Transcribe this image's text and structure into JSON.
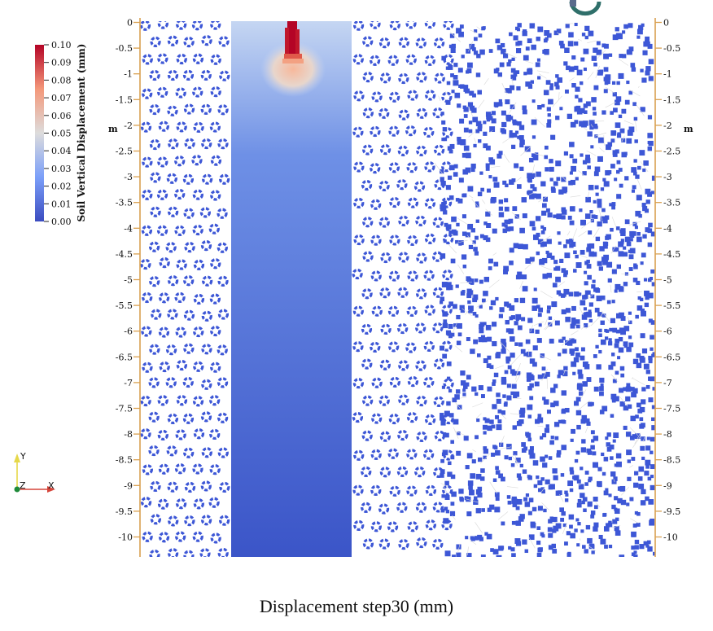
{
  "caption": "Displacement step30 (mm)",
  "colors": {
    "low": "#3b4cc0",
    "mid": "#dddddd",
    "high": "#b40426",
    "ruler": "#d9a050",
    "cell": "#3d57d6"
  },
  "chart_data": {
    "type": "heatmap",
    "title": "Displacement step30 (mm)",
    "colorbar": {
      "title": "Soil Vertical Displacement (mm)",
      "range": [
        0.0,
        0.1
      ],
      "ticks": [
        "0.10",
        "0.09",
        "0.08",
        "0.07",
        "0.06",
        "0.05",
        "0.04",
        "0.03",
        "0.02",
        "0.01",
        "0.00"
      ],
      "colormap": "coolwarm",
      "placement": "top-left"
    },
    "y_axis": {
      "unit": "m",
      "range": [
        0,
        -10.3
      ],
      "ticks": [
        "0",
        "-0.5",
        "-1",
        "-1.5",
        "-2",
        "-2.5",
        "-3",
        "-3.5",
        "-4",
        "-4.5",
        "-5",
        "-5.5",
        "-6",
        "-6.5",
        "-7",
        "-7.5",
        "-8",
        "-8.5",
        "-9",
        "-9.5",
        "-10"
      ],
      "sides": [
        "left",
        "right"
      ]
    },
    "orientation_axes": {
      "labels": [
        "Y",
        "Z",
        "X"
      ],
      "placement": "bottom-left"
    },
    "field_notes": {
      "band_displacement_mm": 0.02,
      "peak_displacement_mm": 0.1,
      "peak_depth_m": [
        0,
        -1.0
      ]
    }
  }
}
